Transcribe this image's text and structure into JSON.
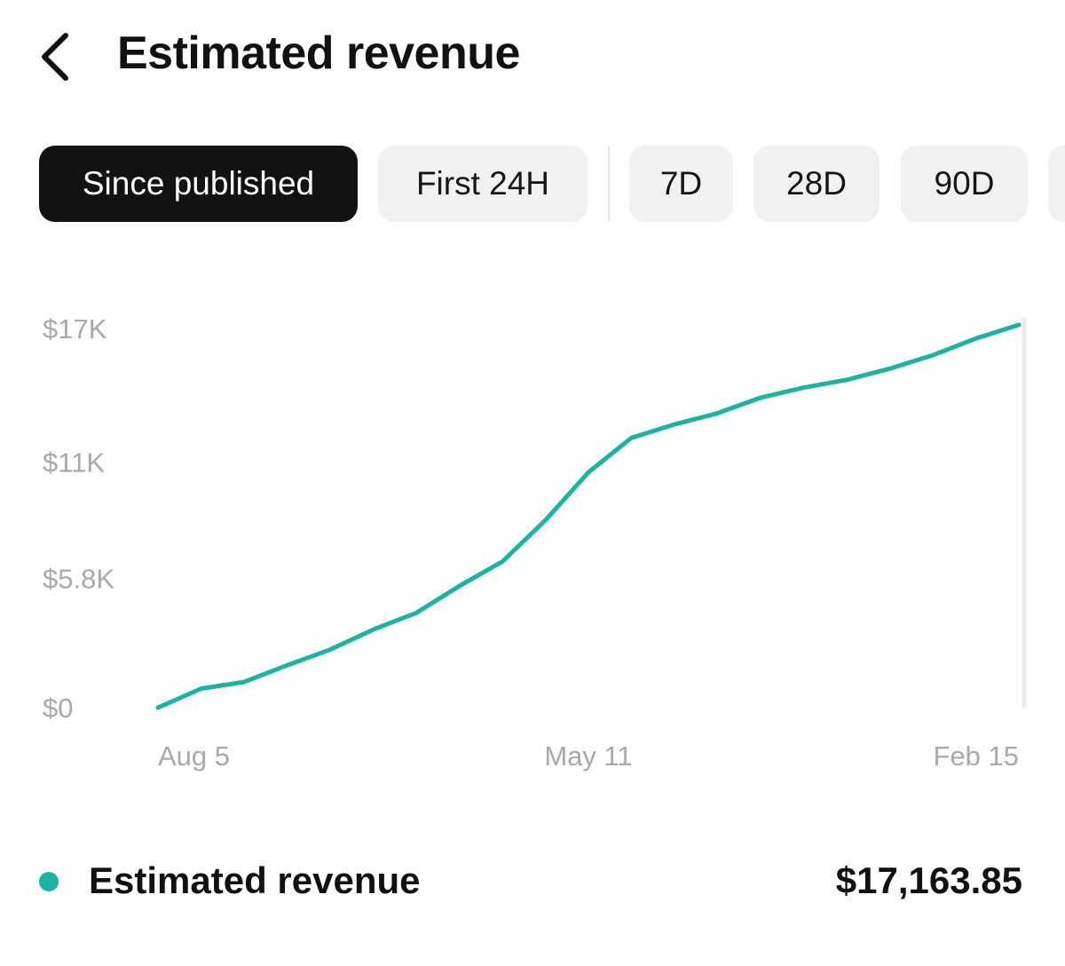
{
  "header": {
    "title": "Estimated revenue",
    "back_icon": "chevron-left-icon"
  },
  "filters": {
    "selected": "Since published",
    "chips": [
      {
        "label": "Since published",
        "active": true
      },
      {
        "label": "First 24H",
        "active": false
      },
      {
        "label": "7D",
        "active": false
      },
      {
        "label": "28D",
        "active": false
      },
      {
        "label": "90D",
        "active": false
      }
    ]
  },
  "colors": {
    "accent": "#1db3a0",
    "active_chip": "#121212",
    "chip": "#f1f1f2",
    "axis_text": "#a9a9a9"
  },
  "chart_data": {
    "type": "line",
    "title": "",
    "xlabel": "",
    "ylabel": "",
    "y_ticks": [
      "$0",
      "$5.8K",
      "$11K",
      "$17K"
    ],
    "y_tick_values": [
      0,
      5800,
      11000,
      17000
    ],
    "x_ticks": [
      "Aug 5",
      "May 11",
      "Feb 15"
    ],
    "ylim": [
      0,
      17000
    ],
    "grid": false,
    "series": [
      {
        "name": "Estimated revenue",
        "values": [
          0,
          850,
          1150,
          1900,
          2600,
          3500,
          4250,
          5450,
          6550,
          8400,
          10550,
          12100,
          12700,
          13200,
          13900,
          14350,
          14700,
          15200,
          15800,
          16550,
          17163.85
        ]
      }
    ]
  },
  "legend": {
    "label": "Estimated revenue",
    "value": "$17,163.85"
  }
}
